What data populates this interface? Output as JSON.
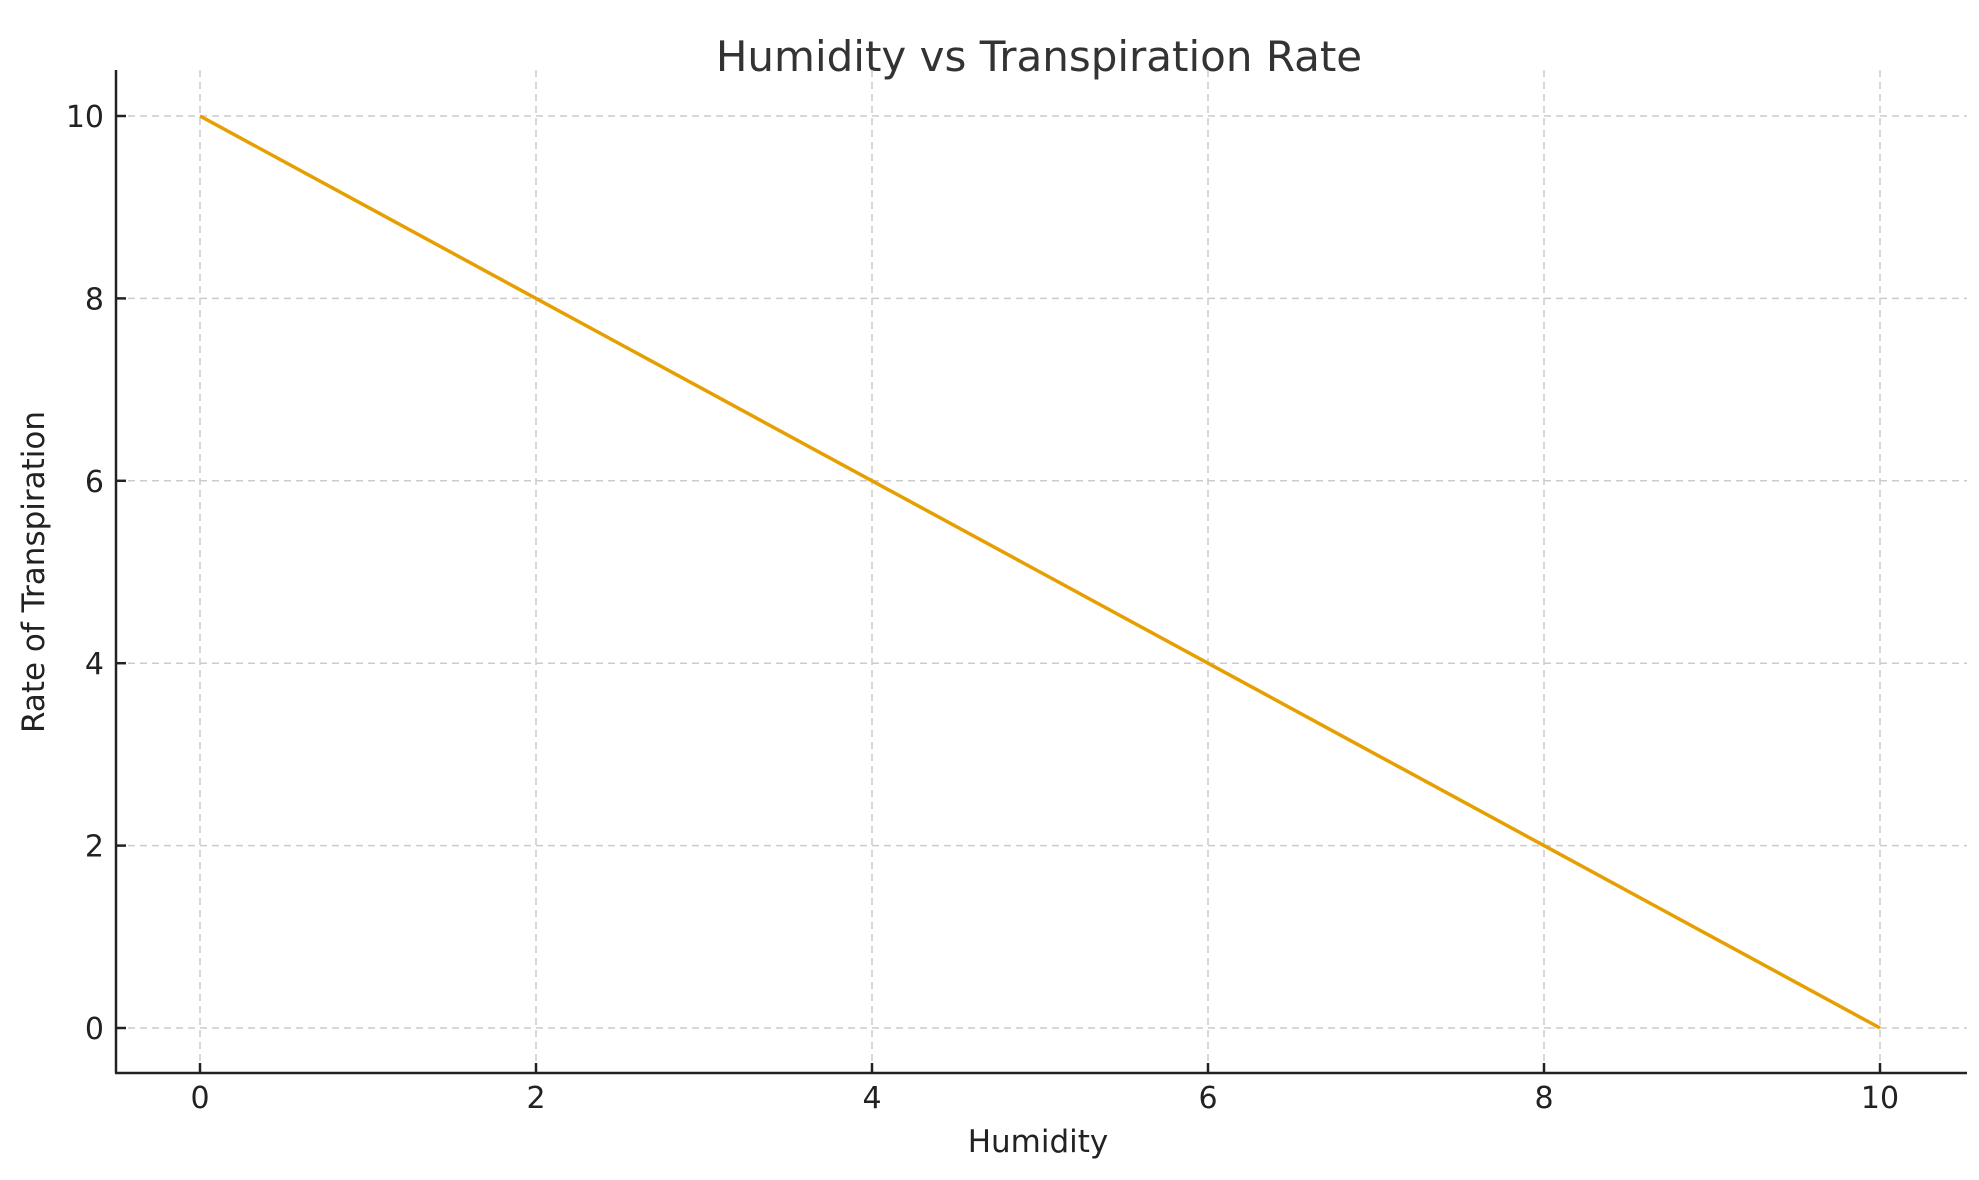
{
  "chart_data": {
    "type": "line",
    "title": "Humidity vs Transpiration Rate",
    "xlabel": "Humidity",
    "ylabel": "Rate of Transpiration",
    "x": [
      0,
      1,
      2,
      3,
      4,
      5,
      6,
      7,
      8,
      9,
      10
    ],
    "series": [
      {
        "name": "Rate of Transpiration",
        "color": "#E69F00",
        "values": [
          10,
          9,
          8,
          7,
          6,
          5,
          4,
          3,
          2,
          1,
          0
        ]
      }
    ],
    "xticks": [
      0,
      2,
      4,
      6,
      8,
      10
    ],
    "yticks": [
      0,
      2,
      4,
      6,
      8,
      10
    ],
    "xlim": [
      -0.5,
      10.5
    ],
    "ylim": [
      -0.5,
      10.5
    ],
    "grid": true,
    "legend": null
  },
  "style": {
    "line_color": "#E69F00",
    "grid_color": "#cccccc",
    "axis_color": "#222222"
  }
}
